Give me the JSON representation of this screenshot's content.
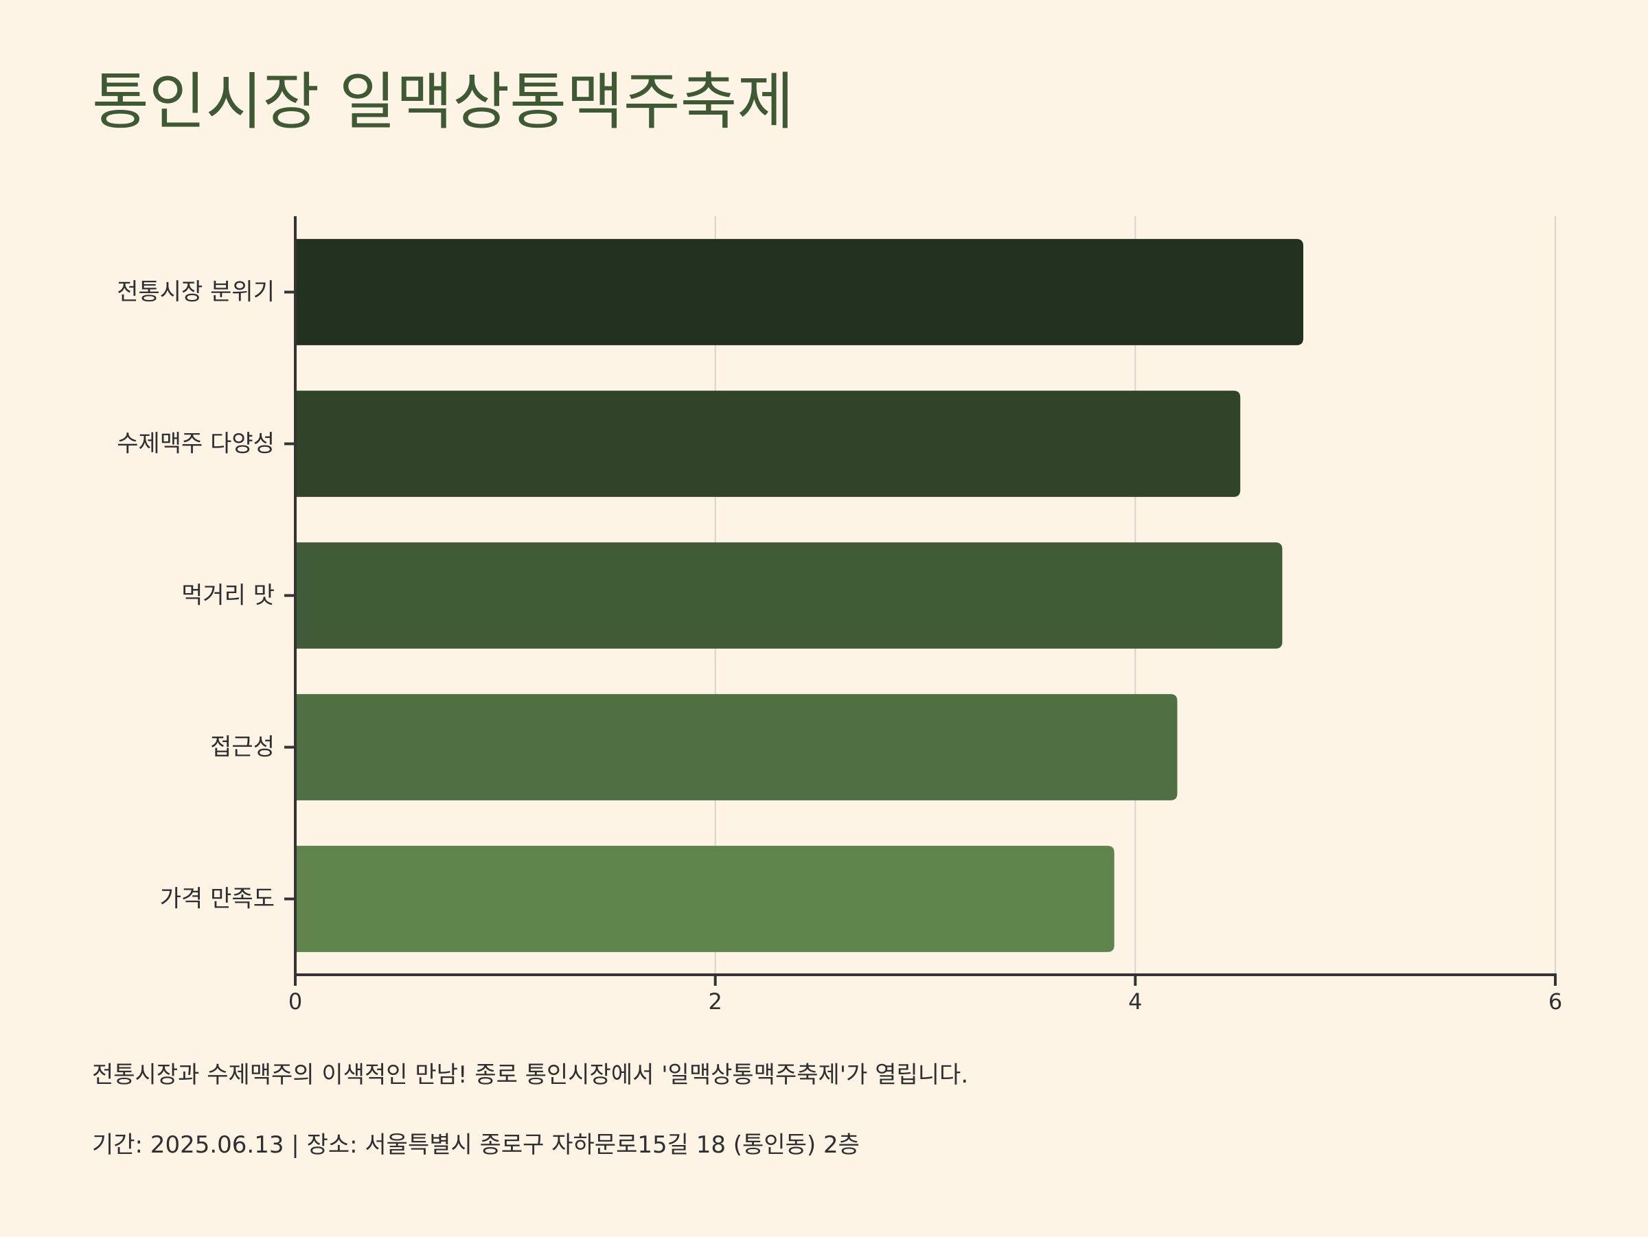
{
  "header": {
    "title": "통인시장 일맥상통맥주축제"
  },
  "chart_data": {
    "type": "bar",
    "orientation": "horizontal",
    "categories": [
      "전통시장 분위기",
      "수제맥주 다양성",
      "먹거리 맛",
      "접근성",
      "가격 만족도"
    ],
    "values": [
      4.8,
      4.5,
      4.7,
      4.2,
      3.9
    ],
    "xlim": [
      0,
      6
    ],
    "xticks": [
      0,
      2,
      4,
      6
    ],
    "grid": true,
    "bar_colors": [
      "#21301f",
      "#2f4428",
      "#3f5c37",
      "#4f7042",
      "#5e844c"
    ],
    "grid_color": "#d9d3c8",
    "axis_color": "#333333"
  },
  "footer": {
    "description": "전통시장과 수제맥주의 이색적인 만남! 종로 통인시장에서 '일맥상통맥주축제'가 열립니다.",
    "info": "기간: 2025.06.13 | 장소: 서울특별시 종로구 자하문로15길 18 (통인동) 2층"
  }
}
